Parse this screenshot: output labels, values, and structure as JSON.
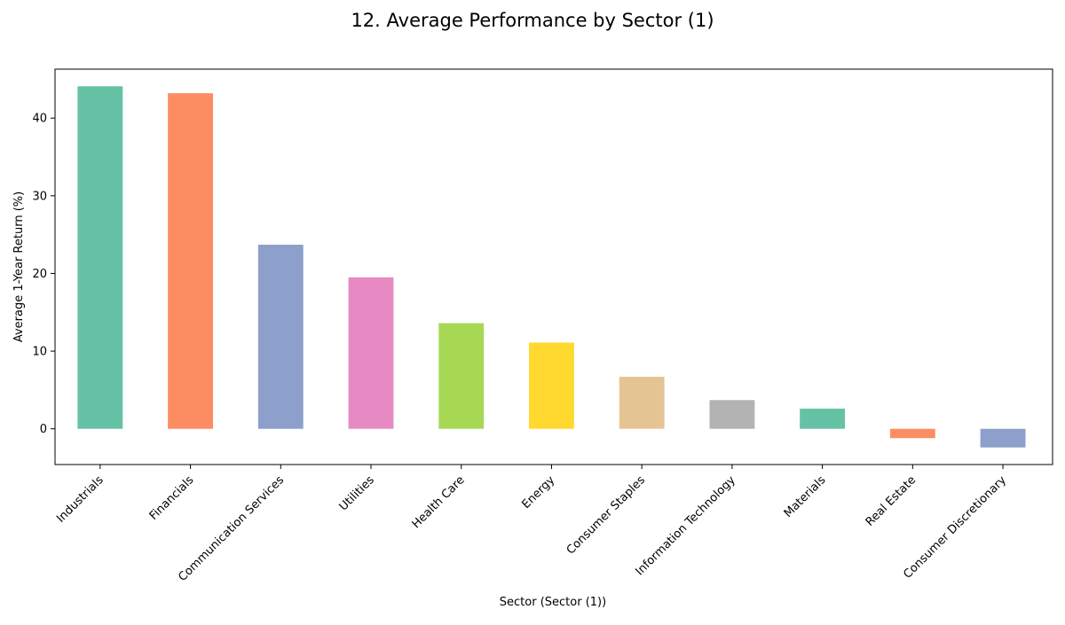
{
  "chart_data": {
    "type": "bar",
    "title": "12. Average Performance by Sector (1)",
    "xlabel": "Sector (Sector (1))",
    "ylabel": "Average 1-Year Return (%)",
    "ylim": [
      -4.6,
      46.3
    ],
    "yticks": [
      0,
      10,
      20,
      30,
      40
    ],
    "grid": false,
    "legend": "none",
    "categories": [
      "Industrials",
      "Financials",
      "Communication Services",
      "Utilities",
      "Health Care",
      "Energy",
      "Consumer Staples",
      "Information Technology",
      "Materials",
      "Real Estate",
      "Consumer Discretionary"
    ],
    "values": [
      44.1,
      43.2,
      23.7,
      19.5,
      13.6,
      11.1,
      6.7,
      3.7,
      2.6,
      -1.2,
      -2.4
    ],
    "colors": [
      "#66c2a5",
      "#fc8d62",
      "#8da0cb",
      "#e78ac3",
      "#a6d854",
      "#ffd92f",
      "#e5c494",
      "#b3b3b3",
      "#66c2a5",
      "#fc8d62",
      "#8da0cb"
    ]
  }
}
